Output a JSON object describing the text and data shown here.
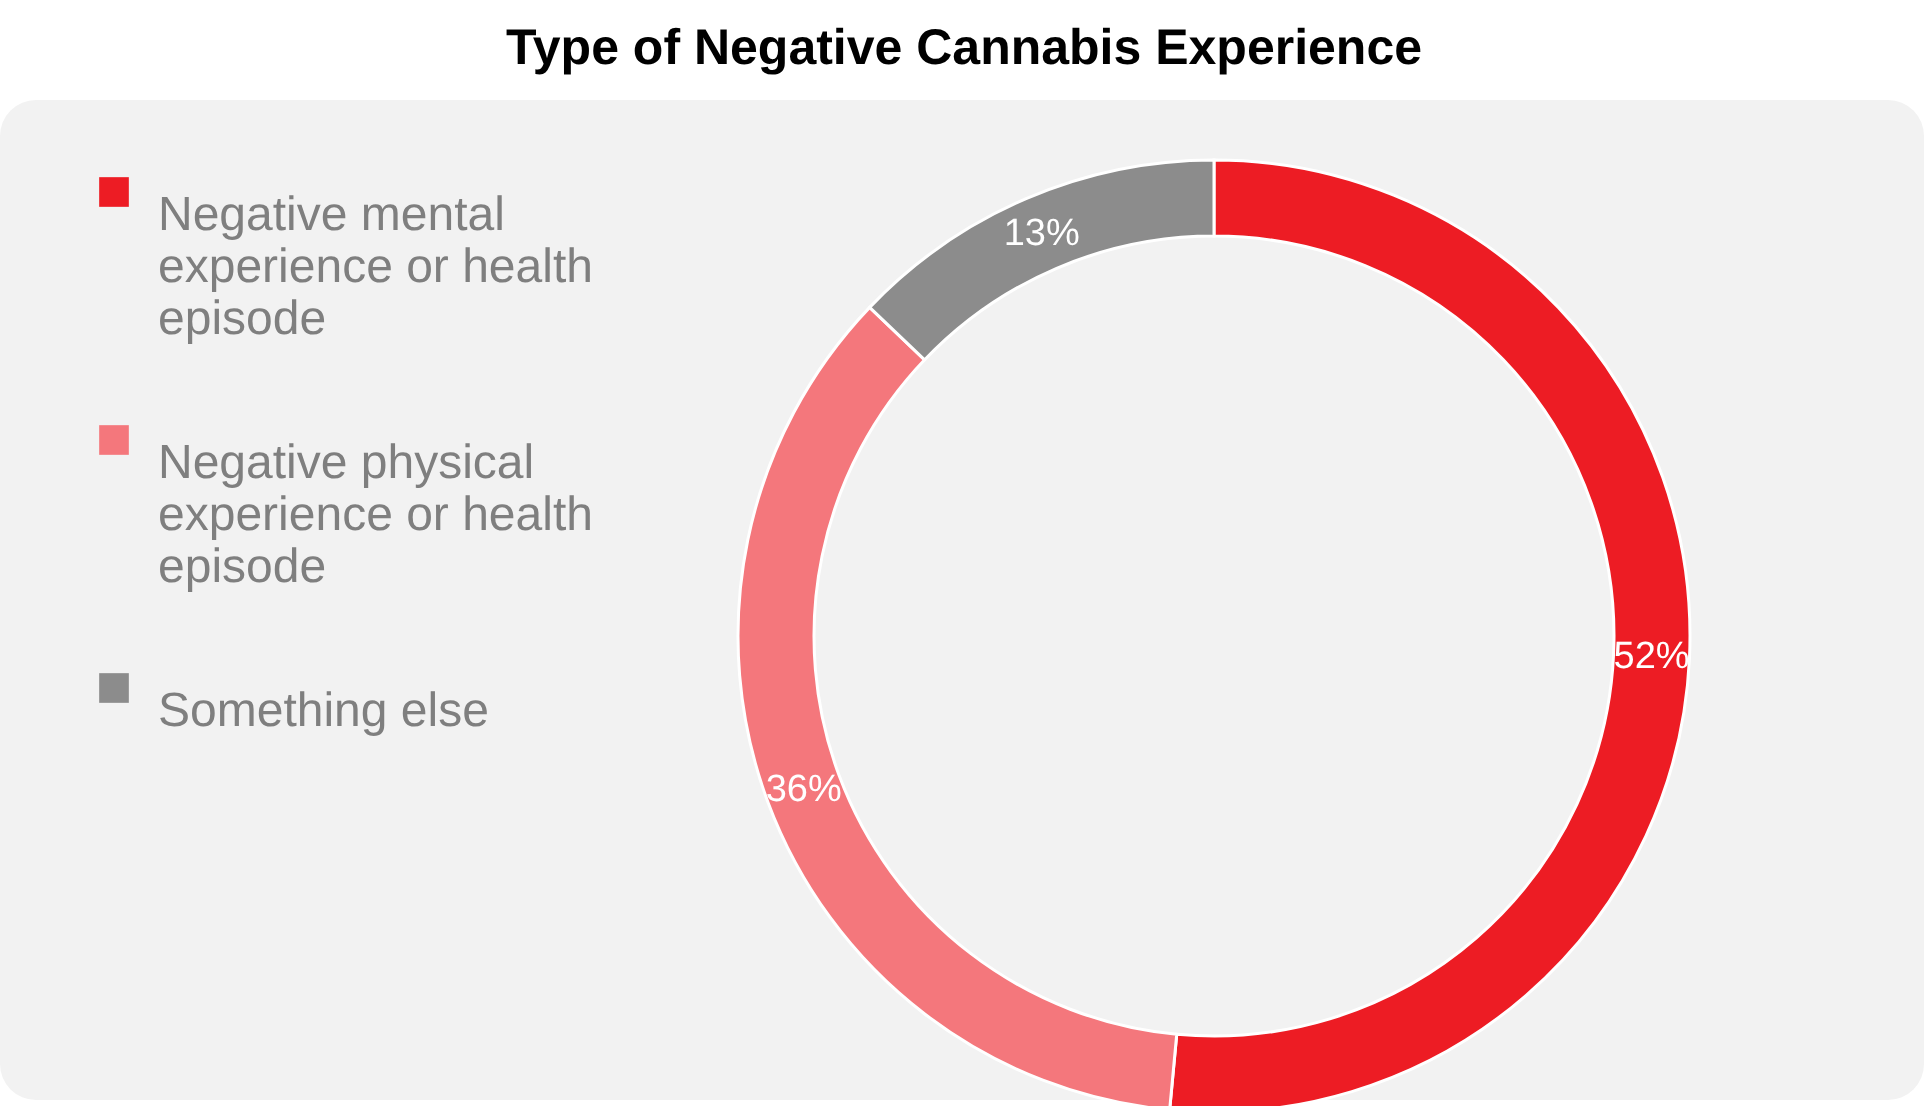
{
  "chart_data": {
    "type": "donut",
    "title": "Type of Negative Cannabis Experience",
    "categories": [
      "Negative mental experience or health episode",
      "Negative physical experience or health episode",
      "Something else"
    ],
    "values": [
      52,
      36,
      13
    ],
    "value_labels": [
      "52%",
      "36%",
      "13%"
    ],
    "colors": [
      "#ed1c24",
      "#f4777c",
      "#8c8c8c"
    ],
    "legend": "top left"
  }
}
